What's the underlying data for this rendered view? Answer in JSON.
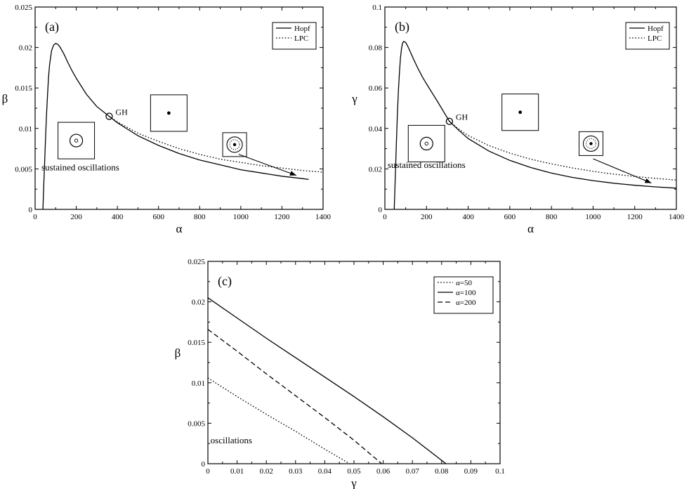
{
  "chart_data": [
    {
      "type": "line",
      "panel_label": "(a)",
      "xlabel": "α",
      "ylabel": "β",
      "xlim": [
        0,
        1400
      ],
      "ylim": [
        0,
        0.025
      ],
      "x_ticks": [
        0,
        200,
        400,
        600,
        800,
        1000,
        1200,
        1400
      ],
      "x_tick_labels": [
        "0",
        "200",
        "400",
        "600",
        "800",
        "1000",
        "1200",
        "1400"
      ],
      "y_ticks": [
        0,
        0.005,
        0.01,
        0.015,
        0.02,
        0.025
      ],
      "y_tick_labels": [
        "0",
        "0.005",
        "0.01",
        "0.015",
        "0.02",
        "0.025"
      ],
      "legend": {
        "position": "top-right",
        "entries": [
          {
            "name": "Hopf",
            "style": "solid"
          },
          {
            "name": "LPC",
            "style": "dotted"
          }
        ]
      },
      "series": [
        {
          "name": "Hopf",
          "style": "solid",
          "x": [
            38,
            40,
            42,
            45,
            50,
            55,
            60,
            65,
            70,
            80,
            90,
            100,
            110,
            120,
            140,
            160,
            180,
            200,
            250,
            300,
            360,
            400,
            450,
            500,
            600,
            700,
            800,
            900,
            1000,
            1100,
            1200,
            1300,
            1330
          ],
          "y": [
            0,
            0.0015,
            0.003,
            0.005,
            0.0082,
            0.0115,
            0.014,
            0.0162,
            0.0178,
            0.0196,
            0.0203,
            0.0205,
            0.0204,
            0.0201,
            0.0192,
            0.0181,
            0.0171,
            0.0162,
            0.0142,
            0.0127,
            0.0115,
            0.0107,
            0.0099,
            0.0091,
            0.0079,
            0.0069,
            0.0061,
            0.0055,
            0.0049,
            0.0045,
            0.0041,
            0.0038,
            0.0037
          ]
        },
        {
          "name": "LPC",
          "style": "dotted",
          "x": [
            360,
            400,
            450,
            500,
            600,
            700,
            800,
            900,
            1000,
            1100,
            1200,
            1300,
            1400
          ],
          "y": [
            0.0115,
            0.0108,
            0.0101,
            0.0094,
            0.0084,
            0.0075,
            0.0068,
            0.0062,
            0.0058,
            0.0054,
            0.0051,
            0.0048,
            0.0046
          ]
        }
      ],
      "gh_point": {
        "label": "GH",
        "x": 360,
        "y": 0.0115
      },
      "annotations": [
        {
          "text": "sustained oscillations",
          "x": 220,
          "y": 0.0048
        }
      ],
      "insets": [
        {
          "type": "stable-ring",
          "x": 200,
          "y": 0.0085
        },
        {
          "type": "fixed-point",
          "x": 650,
          "y": 0.0119
        },
        {
          "type": "two-rings",
          "x": 970,
          "y": 0.008
        }
      ],
      "arrow": {
        "from": [
          990,
          0.0068
        ],
        "to": [
          1270,
          0.0042
        ]
      }
    },
    {
      "type": "line",
      "panel_label": "(b)",
      "xlabel": "α",
      "ylabel": "γ",
      "xlim": [
        0,
        1400
      ],
      "ylim": [
        0,
        0.1
      ],
      "x_ticks": [
        0,
        200,
        400,
        600,
        800,
        1000,
        1200,
        1400
      ],
      "x_tick_labels": [
        "0",
        "200",
        "400",
        "600",
        "800",
        "1000",
        "1200",
        "1400"
      ],
      "y_ticks": [
        0,
        0.02,
        0.04,
        0.06,
        0.08,
        0.1
      ],
      "y_tick_labels": [
        "0",
        "0.02",
        "0.04",
        "0.06",
        "0.08",
        "0.1"
      ],
      "legend": {
        "position": "top-right",
        "entries": [
          {
            "name": "Hopf",
            "style": "solid"
          },
          {
            "name": "LPC",
            "style": "dotted"
          }
        ]
      },
      "series": [
        {
          "name": "Hopf",
          "style": "solid",
          "x": [
            45,
            47,
            50,
            55,
            60,
            65,
            70,
            75,
            80,
            85,
            90,
            100,
            110,
            120,
            140,
            160,
            180,
            200,
            250,
            310,
            350,
            400,
            500,
            600,
            700,
            800,
            900,
            1000,
            1100,
            1200,
            1300,
            1400
          ],
          "y": [
            0,
            0.006,
            0.016,
            0.032,
            0.047,
            0.059,
            0.068,
            0.075,
            0.0795,
            0.0822,
            0.083,
            0.0825,
            0.0806,
            0.0783,
            0.0737,
            0.0694,
            0.0655,
            0.062,
            0.0538,
            0.0435,
            0.0395,
            0.035,
            0.0288,
            0.0242,
            0.0207,
            0.0179,
            0.0158,
            0.0142,
            0.0129,
            0.0119,
            0.0111,
            0.0105
          ]
        },
        {
          "name": "LPC",
          "style": "dotted",
          "x": [
            310,
            350,
            400,
            500,
            600,
            700,
            800,
            900,
            1000,
            1100,
            1200,
            1300,
            1400
          ],
          "y": [
            0.0435,
            0.04,
            0.0365,
            0.0315,
            0.0278,
            0.0248,
            0.0225,
            0.0205,
            0.0188,
            0.0174,
            0.0163,
            0.0153,
            0.0145
          ]
        }
      ],
      "gh_point": {
        "label": "GH",
        "x": 310,
        "y": 0.0435
      },
      "annotations": [
        {
          "text": "sustained oscillations",
          "x": 200,
          "y": 0.0205
        }
      ],
      "insets": [
        {
          "type": "stable-ring",
          "x": 200,
          "y": 0.0325
        },
        {
          "type": "fixed-point",
          "x": 650,
          "y": 0.048
        },
        {
          "type": "two-rings",
          "x": 990,
          "y": 0.0325
        }
      ],
      "arrow": {
        "from": [
          1000,
          0.025
        ],
        "to": [
          1280,
          0.013
        ]
      }
    },
    {
      "type": "line",
      "panel_label": "(c)",
      "xlabel": "γ",
      "ylabel": "β",
      "xlim": [
        0,
        0.1
      ],
      "ylim": [
        0,
        0.025
      ],
      "x_ticks": [
        0,
        0.01,
        0.02,
        0.03,
        0.04,
        0.05,
        0.06,
        0.07,
        0.08,
        0.09,
        0.1
      ],
      "x_tick_labels": [
        "0",
        "0.01",
        "0.02",
        "0.03",
        "0.04",
        "0.05",
        "0.06",
        "0.07",
        "0.08",
        "0.09",
        "0.1"
      ],
      "y_ticks": [
        0,
        0.005,
        0.01,
        0.015,
        0.02,
        0.025
      ],
      "y_tick_labels": [
        "0",
        "0.005",
        "0.01",
        "0.015",
        "0.02",
        "0.025"
      ],
      "legend": {
        "position": "top-right",
        "entries": [
          {
            "name": "α=50",
            "style": "dotted"
          },
          {
            "name": "α=100",
            "style": "solid"
          },
          {
            "name": "α=200",
            "style": "dashed"
          }
        ]
      },
      "series": [
        {
          "name": "α=50",
          "style": "dotted",
          "x": [
            0,
            0.01,
            0.02,
            0.03,
            0.04,
            0.0485
          ],
          "y": [
            0.0106,
            0.0083,
            0.0061,
            0.004,
            0.0018,
            0
          ]
        },
        {
          "name": "α=100",
          "style": "solid",
          "x": [
            0,
            0.01,
            0.02,
            0.03,
            0.04,
            0.05,
            0.06,
            0.07,
            0.0815
          ],
          "y": [
            0.0205,
            0.018,
            0.0155,
            0.0131,
            0.0107,
            0.0083,
            0.0058,
            0.0032,
            0
          ]
        },
        {
          "name": "α=200",
          "style": "dashed",
          "x": [
            0,
            0.01,
            0.02,
            0.03,
            0.04,
            0.05,
            0.0595
          ],
          "y": [
            0.0166,
            0.0139,
            0.0111,
            0.0084,
            0.0057,
            0.0029,
            0
          ]
        }
      ],
      "annotations": [
        {
          "text": "oscillations",
          "x": 0.008,
          "y": 0.0025
        }
      ]
    }
  ]
}
